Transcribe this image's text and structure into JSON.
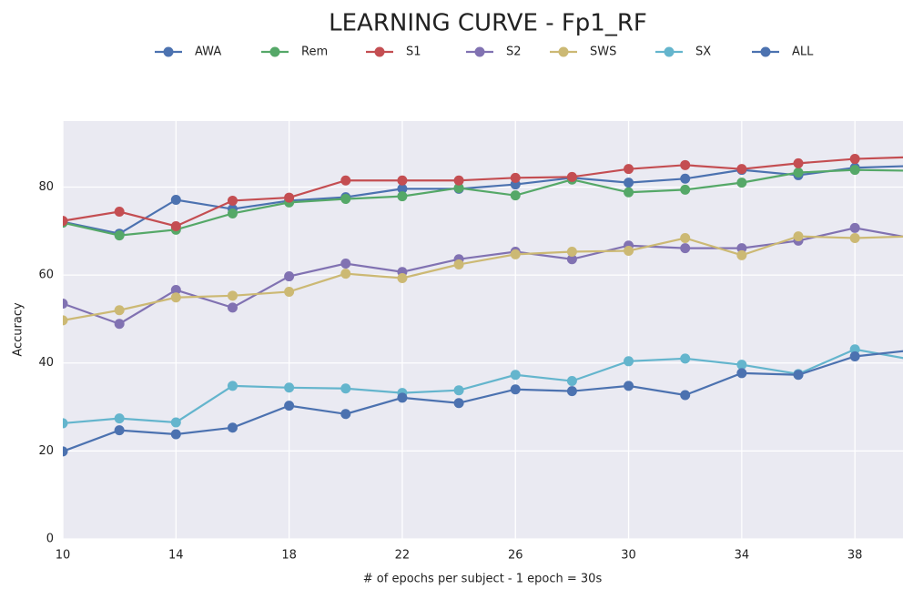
{
  "chart_data": {
    "type": "line",
    "title": "LEARNING CURVE - Fp1_RF",
    "x_label": "# of epochs per subject - 1 epoch = 30s",
    "y_label": "Accuracy",
    "x": [
      10,
      12,
      14,
      16,
      18,
      20,
      22,
      24,
      26,
      28,
      30,
      32,
      34,
      36,
      38,
      40
    ],
    "xlim": [
      10,
      39.7
    ],
    "xticks": [
      10,
      14,
      18,
      22,
      26,
      30,
      34,
      38
    ],
    "ylim": [
      0,
      95
    ],
    "yticks": [
      0,
      20,
      40,
      60,
      80
    ],
    "grid": true,
    "legend": "top",
    "series": [
      {
        "name": "AWA",
        "color": "#4c72b0",
        "values": [
          72.1,
          69.4,
          77.1,
          75.0,
          76.9,
          77.7,
          79.6,
          79.6,
          80.6,
          82.1,
          81.0,
          81.9,
          83.9,
          82.7,
          84.4,
          84.8
        ]
      },
      {
        "name": "Rem",
        "color": "#55a868",
        "values": [
          71.9,
          69.0,
          70.3,
          74.0,
          76.5,
          77.3,
          77.9,
          79.8,
          78.1,
          81.7,
          78.8,
          79.4,
          81.0,
          83.3,
          83.9,
          83.7
        ]
      },
      {
        "name": "S1",
        "color": "#c44e52",
        "values": [
          72.3,
          74.4,
          71.1,
          76.9,
          77.6,
          81.5,
          81.5,
          81.5,
          82.1,
          82.3,
          84.1,
          85.0,
          84.1,
          85.4,
          86.4,
          86.8
        ]
      },
      {
        "name": "S2",
        "color": "#8172b2",
        "values": [
          53.5,
          48.9,
          56.6,
          52.6,
          59.7,
          62.6,
          60.7,
          63.6,
          65.3,
          63.6,
          66.7,
          66.1,
          66.1,
          67.8,
          70.7,
          68.4
        ]
      },
      {
        "name": "SWS",
        "color": "#ccb974",
        "values": [
          49.7,
          52.0,
          54.9,
          55.3,
          56.2,
          60.3,
          59.3,
          62.4,
          64.7,
          65.3,
          65.5,
          68.4,
          64.5,
          68.8,
          68.4,
          68.8
        ]
      },
      {
        "name": "SX",
        "color": "#64b5cd",
        "values": [
          26.3,
          27.4,
          26.5,
          34.8,
          34.4,
          34.2,
          33.2,
          33.8,
          37.3,
          35.9,
          40.4,
          41.0,
          39.6,
          37.5,
          43.1,
          40.8
        ]
      },
      {
        "name": "ALL",
        "color": "#4c72b0",
        "values": [
          19.9,
          24.7,
          23.8,
          25.3,
          30.3,
          28.4,
          32.1,
          30.9,
          34.0,
          33.6,
          34.8,
          32.7,
          37.7,
          37.3,
          41.5,
          42.9
        ]
      }
    ]
  }
}
